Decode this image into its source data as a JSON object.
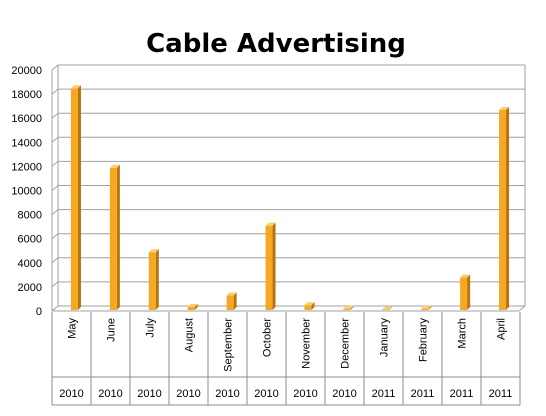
{
  "chart_data": {
    "type": "bar",
    "title": "Cable Advertising",
    "categories": [
      "May",
      "June",
      "July",
      "August",
      "September",
      "October",
      "November",
      "December",
      "January",
      "February",
      "March",
      "April"
    ],
    "years": [
      "2010",
      "2010",
      "2010",
      "2010",
      "2010",
      "2010",
      "2010",
      "2010",
      "2011",
      "2011",
      "2011",
      "2011"
    ],
    "values": [
      18400,
      11800,
      4800,
      250,
      1200,
      7000,
      400,
      100,
      50,
      100,
      2700,
      16600
    ],
    "ylim": [
      0,
      20000
    ],
    "yticks": [
      "0",
      "2000",
      "4000",
      "6000",
      "8000",
      "10000",
      "12000",
      "14000",
      "16000",
      "18000",
      "20000"
    ],
    "grid": true,
    "legend": "none",
    "colors": {
      "bar_front": "#f6a823",
      "bar_side": "#b57410",
      "bar_top": "#f9cf6b"
    }
  }
}
